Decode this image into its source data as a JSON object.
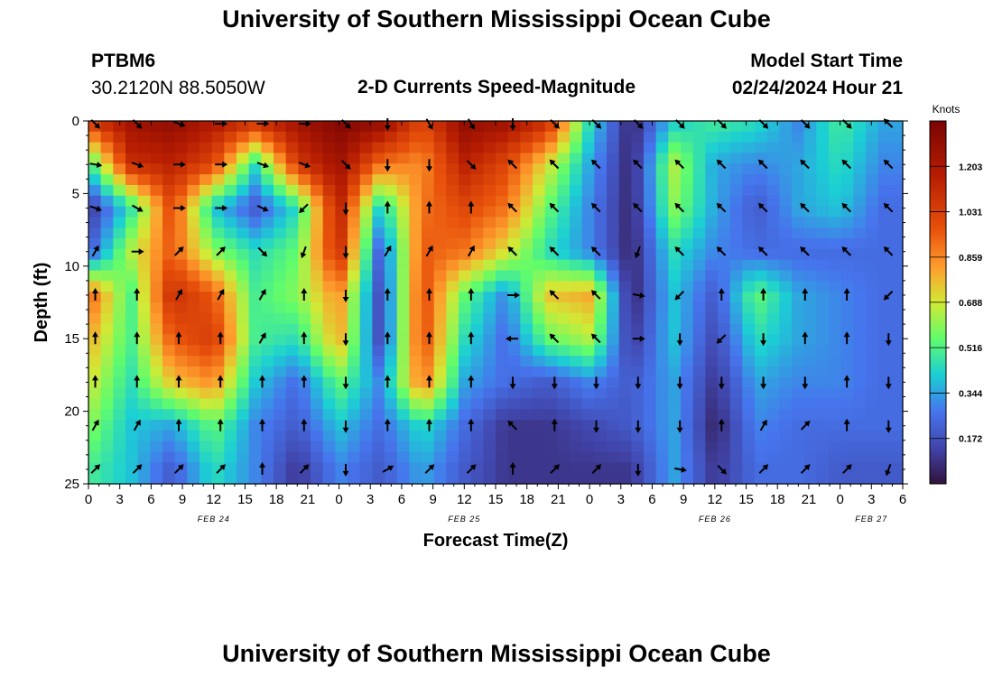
{
  "header": {
    "title": "University of Southern Mississippi Ocean Cube",
    "station_id": "PTBM6",
    "station_coords": "30.2120N  88.5050W",
    "chart_title": "2-D Currents Speed-Magnitude",
    "model_start_label": "Model Start Time",
    "model_start_value": "02/24/2024 Hour 21"
  },
  "footer": {
    "title": "University of Southern Mississippi Ocean Cube"
  },
  "chart_data": {
    "type": "heatmap",
    "title": "2-D Currents Speed-Magnitude",
    "xlabel": "Forecast Time(Z)",
    "ylabel": "Depth (ft)",
    "x_tick_labels": [
      "0",
      "3",
      "6",
      "9",
      "12",
      "15",
      "18",
      "21",
      "0",
      "3",
      "6",
      "9",
      "12",
      "15",
      "18",
      "21",
      "0",
      "3",
      "6",
      "9",
      "12",
      "15",
      "18",
      "21",
      "0",
      "3",
      "6"
    ],
    "date_labels": [
      {
        "label": "FEB 24",
        "tick_index": 4
      },
      {
        "label": "FEB 25",
        "tick_index": 12
      },
      {
        "label": "FEB 26",
        "tick_index": 20
      },
      {
        "label": "FEB 27",
        "tick_index": 25
      }
    ],
    "y_tick_labels": [
      "0",
      "5",
      "10",
      "15",
      "20",
      "25"
    ],
    "ylim": [
      0,
      25
    ],
    "x_hours_range": [
      0,
      78
    ],
    "colorbar": {
      "label": "Knots",
      "ticks": [
        "1.203",
        "1.031",
        "0.859",
        "0.688",
        "0.516",
        "0.344",
        "0.172"
      ],
      "range": [
        0,
        1.375
      ]
    },
    "columns_hours": [
      0,
      4,
      8,
      12,
      16,
      20,
      24,
      28,
      32,
      36,
      40,
      44,
      48,
      52,
      56,
      60,
      64,
      68,
      72,
      76
    ],
    "depth_rows_ft": [
      0,
      3,
      6,
      9,
      12,
      15,
      18,
      21,
      24
    ],
    "speed_knots": [
      [
        1.05,
        1.25,
        1.3,
        1.2,
        1.1,
        1.25,
        1.35,
        1.3,
        1.0,
        1.3,
        1.25,
        1.1,
        0.45,
        0.05,
        0.4,
        0.5,
        0.45,
        0.3,
        0.5,
        0.35
      ],
      [
        0.45,
        1.1,
        1.15,
        1.0,
        0.45,
        1.05,
        1.25,
        0.9,
        0.85,
        1.15,
        1.0,
        0.7,
        0.35,
        0.05,
        0.65,
        0.35,
        0.3,
        0.35,
        0.45,
        0.3
      ],
      [
        0.1,
        0.45,
        1.0,
        0.4,
        0.2,
        0.45,
        1.15,
        0.4,
        0.9,
        1.0,
        0.9,
        0.55,
        0.3,
        0.05,
        0.6,
        0.35,
        0.2,
        0.35,
        0.4,
        0.25
      ],
      [
        0.2,
        0.65,
        0.95,
        0.6,
        0.45,
        0.55,
        1.1,
        0.2,
        0.95,
        0.9,
        0.7,
        0.45,
        0.3,
        0.05,
        0.45,
        0.3,
        0.25,
        0.25,
        0.25,
        0.25
      ],
      [
        0.95,
        0.5,
        1.1,
        0.95,
        0.5,
        0.6,
        0.85,
        0.15,
        1.0,
        0.55,
        0.3,
        0.75,
        0.8,
        0.05,
        0.4,
        0.2,
        0.55,
        0.35,
        0.3,
        0.25
      ],
      [
        0.8,
        0.5,
        0.95,
        1.05,
        0.5,
        0.45,
        0.8,
        0.15,
        1.0,
        0.45,
        0.25,
        0.55,
        0.65,
        0.1,
        0.4,
        0.15,
        0.45,
        0.35,
        0.3,
        0.25
      ],
      [
        0.7,
        0.45,
        0.75,
        0.85,
        0.4,
        0.25,
        0.55,
        0.3,
        0.9,
        0.35,
        0.25,
        0.2,
        0.3,
        0.2,
        0.35,
        0.1,
        0.35,
        0.3,
        0.3,
        0.25
      ],
      [
        0.6,
        0.4,
        0.35,
        0.55,
        0.3,
        0.2,
        0.4,
        0.25,
        0.45,
        0.25,
        0.1,
        0.1,
        0.15,
        0.2,
        0.35,
        0.05,
        0.3,
        0.25,
        0.25,
        0.25
      ],
      [
        0.5,
        0.4,
        0.2,
        0.45,
        0.3,
        0.1,
        0.3,
        0.2,
        0.35,
        0.2,
        0.1,
        0.1,
        0.1,
        0.1,
        0.35,
        0.1,
        0.25,
        0.25,
        0.2,
        0.2
      ]
    ],
    "vector_direction_deg": [
      [
        135,
        135,
        110,
        90,
        90,
        90,
        135,
        180,
        150,
        150,
        180,
        135,
        135,
        135,
        135,
        135,
        135,
        135,
        135,
        315
      ],
      [
        100,
        110,
        90,
        90,
        110,
        110,
        135,
        180,
        180,
        135,
        315,
        315,
        315,
        315,
        315,
        315,
        315,
        315,
        315,
        315
      ],
      [
        110,
        120,
        90,
        90,
        115,
        225,
        180,
        0,
        0,
        0,
        315,
        315,
        315,
        315,
        315,
        315,
        315,
        315,
        315,
        315
      ],
      [
        30,
        90,
        45,
        45,
        135,
        200,
        180,
        30,
        30,
        30,
        315,
        315,
        315,
        200,
        315,
        315,
        315,
        315,
        315,
        315
      ],
      [
        0,
        0,
        30,
        30,
        30,
        0,
        180,
        0,
        0,
        0,
        90,
        315,
        315,
        100,
        225,
        0,
        0,
        0,
        0,
        225
      ],
      [
        0,
        0,
        0,
        0,
        30,
        0,
        180,
        0,
        0,
        0,
        270,
        315,
        315,
        90,
        180,
        225,
        180,
        0,
        0,
        180
      ],
      [
        0,
        0,
        0,
        0,
        0,
        0,
        180,
        0,
        0,
        0,
        180,
        180,
        180,
        180,
        180,
        180,
        180,
        180,
        0,
        180
      ],
      [
        30,
        30,
        0,
        0,
        0,
        0,
        180,
        0,
        0,
        0,
        315,
        0,
        180,
        180,
        180,
        0,
        30,
        45,
        0,
        180
      ],
      [
        45,
        45,
        45,
        45,
        0,
        45,
        180,
        60,
        45,
        45,
        0,
        45,
        45,
        180,
        100,
        135,
        45,
        45,
        45,
        200
      ]
    ]
  }
}
